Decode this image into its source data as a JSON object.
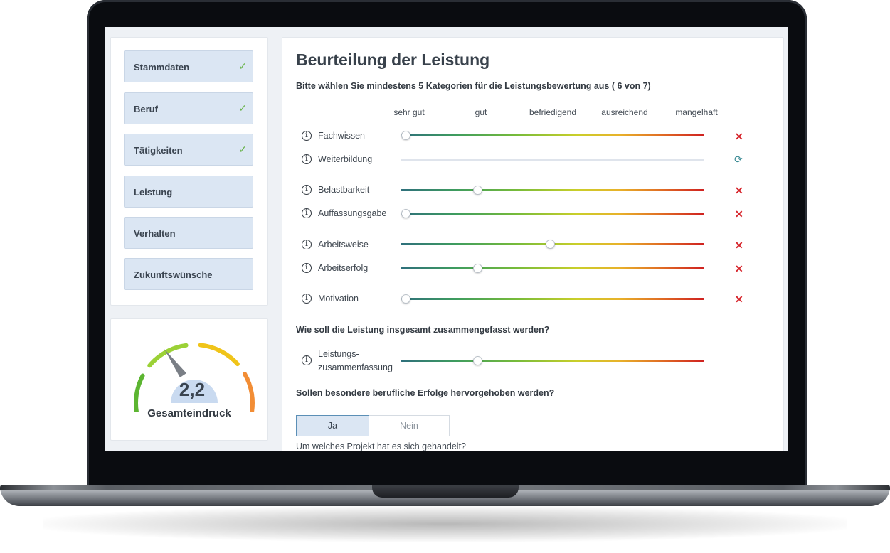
{
  "nav": {
    "items": [
      {
        "label": "Stammdaten",
        "done": true
      },
      {
        "label": "Beruf",
        "done": true
      },
      {
        "label": "Tätigkeiten",
        "done": true
      },
      {
        "label": "Leistung",
        "done": false
      },
      {
        "label": "Verhalten",
        "done": false
      },
      {
        "label": "Zukunftswünsche",
        "done": false
      }
    ],
    "check_glyph": "✓"
  },
  "gauge": {
    "value": "2,2",
    "label": "Gesamteindruck",
    "segment_colors": [
      "#5cb531",
      "#9bd136",
      "#f0c419",
      "#f28d35"
    ]
  },
  "main": {
    "title": "Beurteilung der Leistung",
    "instruction": "Bitte wählen Sie mindestens 5 Kategorien für die Leistungsbewertung aus ( 6 von 7)",
    "scale": [
      "sehr gut",
      "gut",
      "befriedigend",
      "ausreichend",
      "mangelhaft"
    ],
    "info_glyph": "i",
    "remove_glyph": "✕",
    "refresh_glyph": "⟳",
    "categories": [
      {
        "label": "Fachwissen",
        "active": true,
        "rating": 1
      },
      {
        "label": "Weiterbildung",
        "active": false,
        "rating": null
      },
      {
        "label": "Belastbarkeit",
        "active": true,
        "rating": 2
      },
      {
        "label": "Auffassungsgabe",
        "active": true,
        "rating": 1
      },
      {
        "label": "Arbeitsweise",
        "active": true,
        "rating": 3
      },
      {
        "label": "Arbeitserfolg",
        "active": true,
        "rating": 2
      },
      {
        "label": "Motivation",
        "active": true,
        "rating": 1
      }
    ],
    "summary_question": "Wie soll die Leistung insgesamt zusammengefasst werden?",
    "summary": {
      "label_line1": "Leistungs-",
      "label_line2": "zusammenfassung",
      "rating": 2
    },
    "success_question": "Sollen besondere berufliche Erfolge hervorgehoben werden?",
    "yes_label": "Ja",
    "no_label": "Nein",
    "selected": "Ja",
    "project_question": "Um welches Projekt hat es sich gehandelt?"
  },
  "colors": {
    "accent": "#5b8fb6",
    "nav_bg": "#dbe6f3",
    "remove": "#d6232a",
    "check": "#68b34a"
  }
}
